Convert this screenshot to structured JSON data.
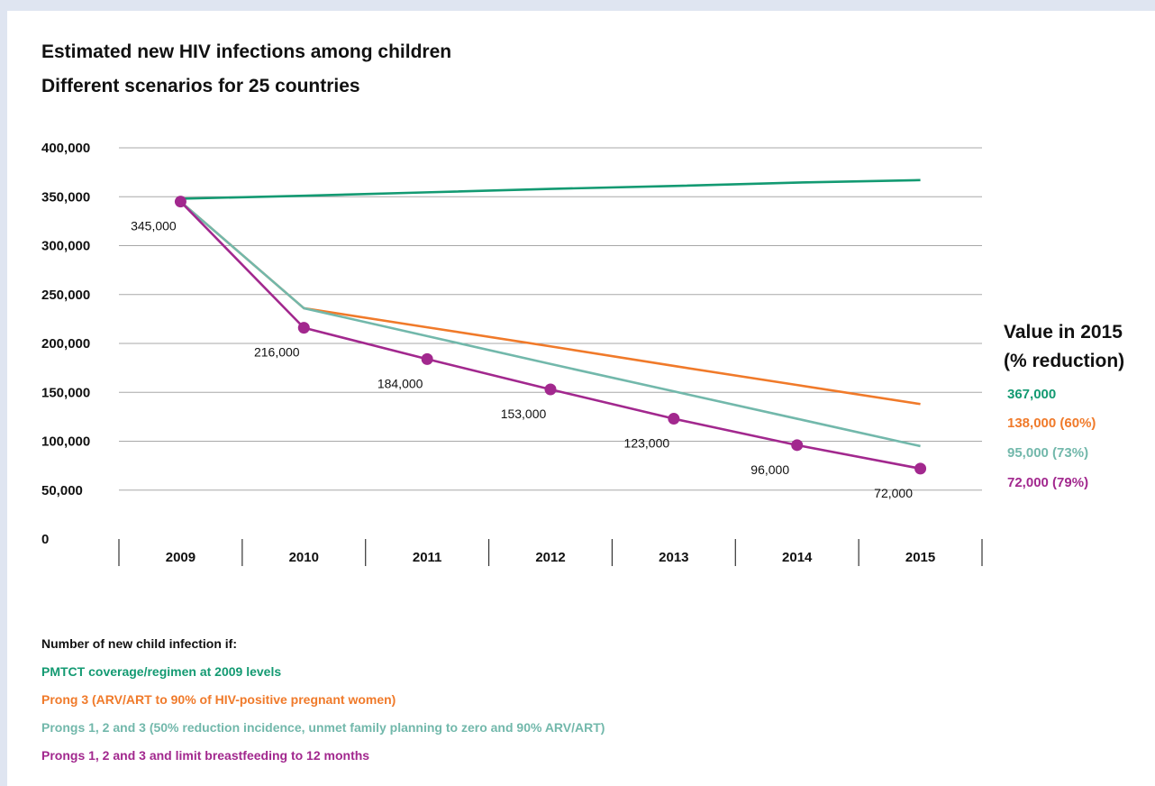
{
  "title": "Estimated new HIV infections among children",
  "subtitle": "Different scenarios for 25 countries",
  "value_header": [
    "Value in 2015",
    "(% reduction)"
  ],
  "side_values": [
    {
      "text": "367,000",
      "color": "#139a72"
    },
    {
      "text": "138,000 (60%)",
      "color": "#f07a2a"
    },
    {
      "text": "95,000 (73%)",
      "color": "#72b8ab"
    },
    {
      "text": "72,000 (79%)",
      "color": "#a2288e"
    }
  ],
  "legend": {
    "heading": "Number of new child infection if:",
    "items": [
      {
        "label": "PMTCT coverage/regimen at 2009 levels",
        "color": "#139a72"
      },
      {
        "label": "Prong 3 (ARV/ART to 90% of HIV-positive pregnant women)",
        "color": "#f07a2a"
      },
      {
        "label": "Prongs 1, 2 and 3 (50% reduction incidence, unmet family planning to zero and 90% ARV/ART)",
        "color": "#72b8ab"
      },
      {
        "label": "Prongs 1, 2 and 3 and limit breastfeeding to 12 months",
        "color": "#a2288e"
      }
    ]
  },
  "chart_data": {
    "type": "line",
    "title": "Estimated new HIV infections among children",
    "subtitle": "Different scenarios for 25 countries",
    "x": [
      "2009",
      "2010",
      "2011",
      "2012",
      "2013",
      "2014",
      "2015"
    ],
    "ylim": [
      0,
      400000
    ],
    "yticks": [
      0,
      50000,
      100000,
      150000,
      200000,
      250000,
      300000,
      350000,
      400000
    ],
    "ytick_labels": [
      "0",
      "50,000",
      "100,000",
      "150,000",
      "200,000",
      "250,000",
      "300,000",
      "350,000",
      "400,000"
    ],
    "grid": true,
    "series": [
      {
        "name": "PMTCT coverage/regimen at 2009 levels",
        "color": "#139a72",
        "markers": false,
        "values": [
          348000,
          351000,
          354500,
          358000,
          361000,
          364500,
          367000
        ]
      },
      {
        "name": "Prong 3 (ARV/ART to 90% of HIV-positive pregnant women)",
        "color": "#f07a2a",
        "markers": false,
        "values": [
          345000,
          236000,
          216500,
          197000,
          177000,
          157500,
          138000
        ]
      },
      {
        "name": "Prongs 1, 2 and 3 (50% reduction incidence, unmet family planning to zero and 90% ARV/ART)",
        "color": "#72b8ab",
        "markers": false,
        "values": [
          345000,
          236000,
          207500,
          179000,
          151000,
          123000,
          95000
        ]
      },
      {
        "name": "Prongs 1, 2 and 3 and limit breastfeeding to 12 months",
        "color": "#a2288e",
        "markers": true,
        "values": [
          345000,
          216000,
          184000,
          153000,
          123000,
          96000,
          72000
        ]
      }
    ],
    "data_labels": [
      "345,000",
      "216,000",
      "184,000",
      "153,000",
      "123,000",
      "96,000",
      "72,000"
    ]
  }
}
